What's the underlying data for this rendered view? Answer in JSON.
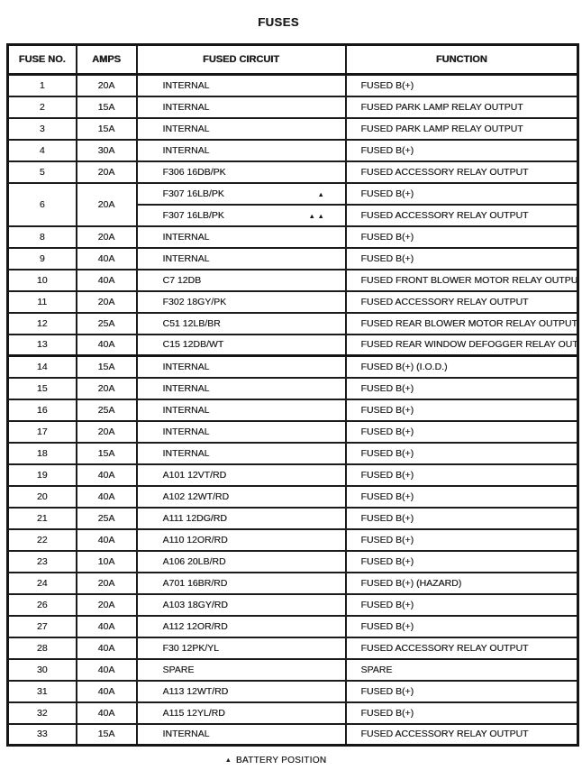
{
  "title": "FUSES",
  "colors": {
    "ink": "#1f1f1f",
    "paper": "#ffffff"
  },
  "footnote": {
    "marker": "▲",
    "text": "BATTERY POSITION"
  },
  "table": {
    "headers": [
      "FUSE NO.",
      "AMPS",
      "FUSED CIRCUIT",
      "FUNCTION"
    ],
    "rows": [
      {
        "no": "1",
        "amps": "20A",
        "circuit": "INTERNAL",
        "function": "FUSED B(+)"
      },
      {
        "no": "2",
        "amps": "15A",
        "circuit": "INTERNAL",
        "function": "FUSED PARK LAMP RELAY OUTPUT"
      },
      {
        "no": "3",
        "amps": "15A",
        "circuit": "INTERNAL",
        "function": "FUSED PARK LAMP RELAY OUTPUT"
      },
      {
        "no": "4",
        "amps": "30A",
        "circuit": "INTERNAL",
        "function": "FUSED B(+)"
      },
      {
        "no": "5",
        "amps": "20A",
        "circuit": "F306 16DB/PK",
        "function": "FUSED ACCESSORY RELAY OUTPUT"
      },
      {
        "no": "6",
        "amps": "20A",
        "subrows": [
          {
            "circuit": "F307 16LB/PK",
            "marker": "▲",
            "function": "FUSED B(+)"
          },
          {
            "circuit": "F307 16LB/PK",
            "marker": "▲▲",
            "function": "FUSED ACCESSORY RELAY OUTPUT"
          }
        ]
      },
      {
        "no": "8",
        "amps": "20A",
        "circuit": "INTERNAL",
        "function": "FUSED B(+)"
      },
      {
        "no": "9",
        "amps": "40A",
        "circuit": "INTERNAL",
        "function": "FUSED B(+)"
      },
      {
        "no": "10",
        "amps": "40A",
        "circuit": "C7 12DB",
        "function": "FUSED FRONT BLOWER MOTOR RELAY OUTPUT"
      },
      {
        "no": "11",
        "amps": "20A",
        "circuit": "F302 18GY/PK",
        "function": "FUSED ACCESSORY RELAY OUTPUT"
      },
      {
        "no": "12",
        "amps": "25A",
        "circuit": "C51 12LB/BR",
        "function": "FUSED REAR BLOWER MOTOR RELAY OUTPUT"
      },
      {
        "no": "13",
        "amps": "40A",
        "circuit": "C15 12DB/WT",
        "function": "FUSED REAR WINDOW DEFOGGER RELAY OUTPUT"
      },
      {
        "no": "14",
        "amps": "15A",
        "circuit": "INTERNAL",
        "function": "FUSED B(+) (I.O.D.)",
        "heavy_top": true
      },
      {
        "no": "15",
        "amps": "20A",
        "circuit": "INTERNAL",
        "function": "FUSED B(+)"
      },
      {
        "no": "16",
        "amps": "25A",
        "circuit": "INTERNAL",
        "function": "FUSED B(+)"
      },
      {
        "no": "17",
        "amps": "20A",
        "circuit": "INTERNAL",
        "function": "FUSED B(+)"
      },
      {
        "no": "18",
        "amps": "15A",
        "circuit": "INTERNAL",
        "function": "FUSED B(+)"
      },
      {
        "no": "19",
        "amps": "40A",
        "circuit": "A101 12VT/RD",
        "function": "FUSED B(+)"
      },
      {
        "no": "20",
        "amps": "40A",
        "circuit": "A102 12WT/RD",
        "function": "FUSED B(+)"
      },
      {
        "no": "21",
        "amps": "25A",
        "circuit": "A111 12DG/RD",
        "function": "FUSED B(+)"
      },
      {
        "no": "22",
        "amps": "40A",
        "circuit": "A110 12OR/RD",
        "function": "FUSED B(+)"
      },
      {
        "no": "23",
        "amps": "10A",
        "circuit": "A106 20LB/RD",
        "function": "FUSED B(+)"
      },
      {
        "no": "24",
        "amps": "20A",
        "circuit": "A701 16BR/RD",
        "function": "FUSED B(+) (HAZARD)"
      },
      {
        "no": "26",
        "amps": "20A",
        "circuit": "A103 18GY/RD",
        "function": "FUSED B(+)"
      },
      {
        "no": "27",
        "amps": "40A",
        "circuit": "A112 12OR/RD",
        "function": "FUSED B(+)"
      },
      {
        "no": "28",
        "amps": "40A",
        "circuit": "F30 12PK/YL",
        "function": "FUSED ACCESSORY RELAY OUTPUT"
      },
      {
        "no": "30",
        "amps": "40A",
        "circuit": "SPARE",
        "function": "SPARE"
      },
      {
        "no": "31",
        "amps": "40A",
        "circuit": "A113 12WT/RD",
        "function": "FUSED B(+)"
      },
      {
        "no": "32",
        "amps": "40A",
        "circuit": "A115 12YL/RD",
        "function": "FUSED B(+)"
      },
      {
        "no": "33",
        "amps": "15A",
        "circuit": "INTERNAL",
        "function": "FUSED ACCESSORY RELAY OUTPUT"
      }
    ]
  }
}
